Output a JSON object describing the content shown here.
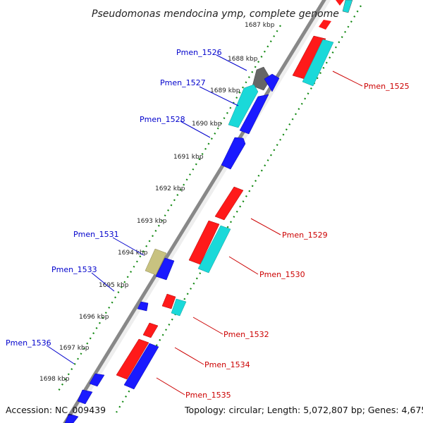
{
  "title": "Pseudomonas mendocina ymp, complete genome",
  "footer": {
    "accession": "Accession: NC_009439",
    "topology": "Topology: circular; Length: 5,072,807 bp; Genes: 4,675"
  },
  "colors": {
    "forward_label": "#0000cc",
    "reverse_label": "#cc0000",
    "red_gene": "#ff1a1a",
    "blue_gene": "#1a1aff",
    "cyan_gene": "#1ad9d9",
    "gray_gene": "#666666",
    "olive_gene": "#c8c280",
    "ruler_dot": "#118811"
  },
  "ruler": {
    "ticks": [
      "1687 kbp",
      "1688 kbp",
      "1689 kbp",
      "1690 kbp",
      "1691 kbp",
      "1692 kbp",
      "1693 kbp",
      "1694 kbp",
      "1695 kbp",
      "1696 kbp",
      "1697 kbp",
      "1698 kbp"
    ]
  },
  "gene_labels": {
    "forward": [
      "Pmen_1526",
      "Pmen_1527",
      "Pmen_1528",
      "Pmen_1531",
      "Pmen_1533",
      "Pmen_1536"
    ],
    "reverse": [
      "Pmen_1525",
      "Pmen_1529",
      "Pmen_1530",
      "Pmen_1532",
      "Pmen_1534",
      "Pmen_1535"
    ]
  }
}
